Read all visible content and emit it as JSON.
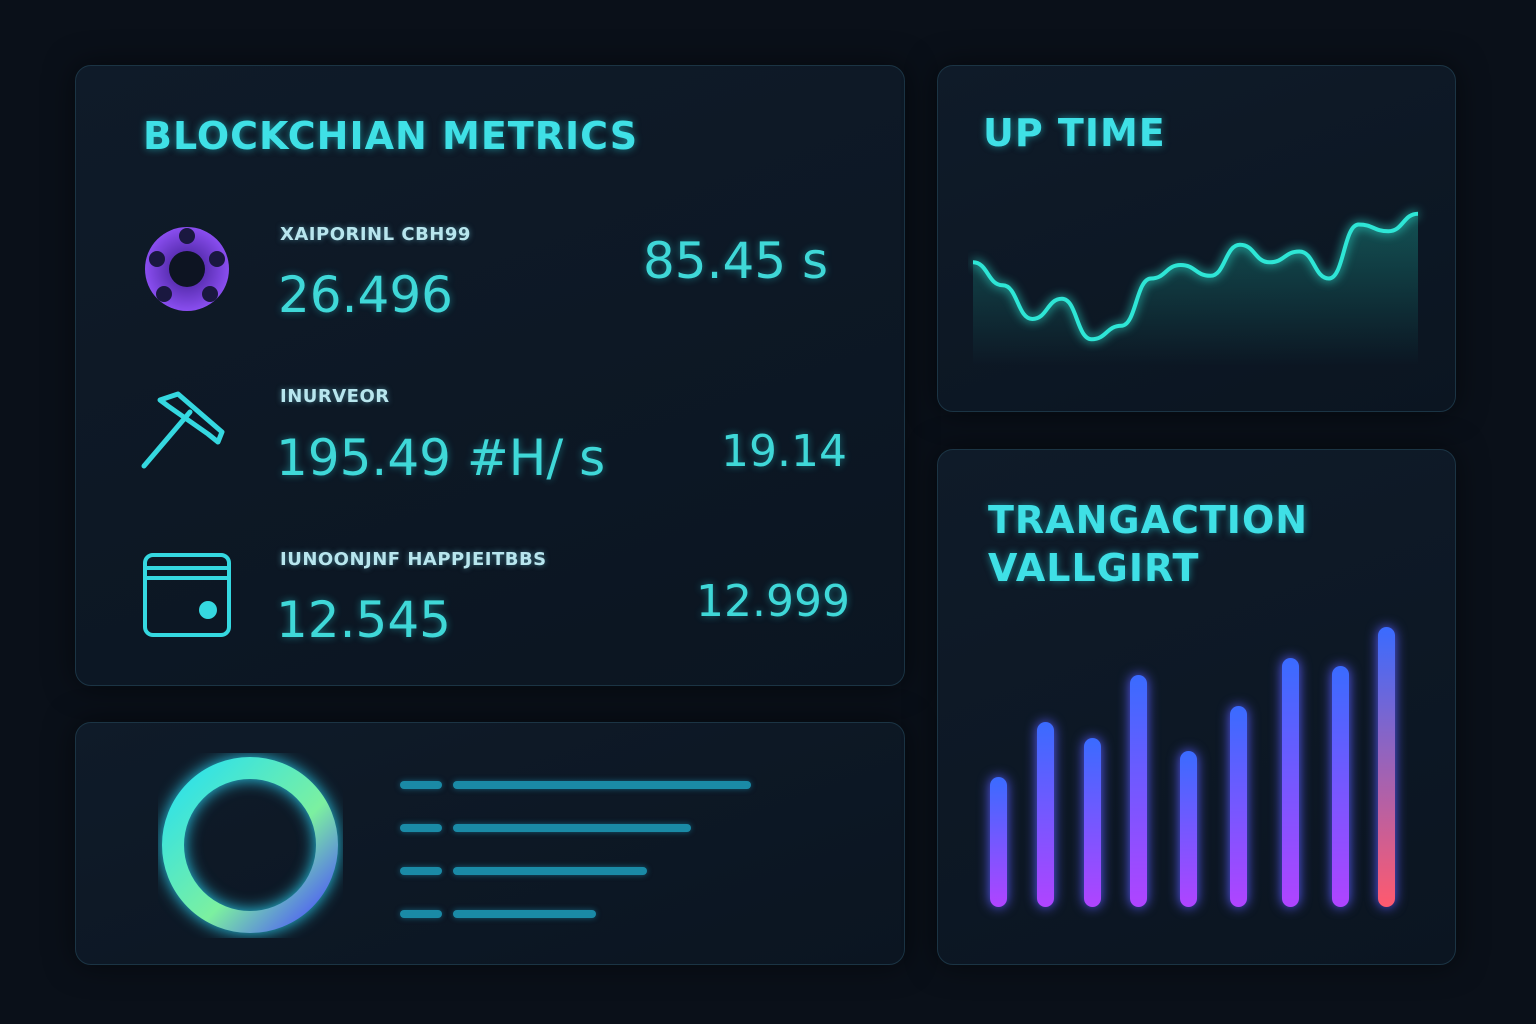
{
  "metrics": {
    "title": "BLOCKCHIAN METRICS",
    "items": [
      {
        "icon": "coin-icon",
        "label": "XAIPORINL CBH99",
        "value": "26.496",
        "side_value": "85.45 s"
      },
      {
        "icon": "pickaxe-icon",
        "label": "INURVEOR",
        "value": "195.49 #H/ s",
        "side_value": "19.14"
      },
      {
        "icon": "wallet-icon",
        "label": "IUNOONJNF HAPPJEITBBS",
        "value": "12.545",
        "side_value": "12.999"
      }
    ]
  },
  "uptime": {
    "title": "UP TIME",
    "line_color": "#2ee6d6",
    "values": [
      62,
      45,
      20,
      35,
      5,
      15,
      50,
      60,
      52,
      75,
      62,
      70,
      50,
      90,
      85,
      98
    ]
  },
  "transactions": {
    "title_line1": "TRANGACTION",
    "title_line2": "VALLGIRT",
    "values": [
      130,
      185,
      169,
      232,
      156,
      201,
      249,
      241,
      280
    ],
    "colors": {
      "top": "#3a6bff",
      "bottom": "#b044ff",
      "last_bottom": "#ff5a6e"
    }
  },
  "summary": {
    "ring_colors": [
      "#27e0f0",
      "#7cf0a0",
      "#4a4cff"
    ],
    "lines": [
      {
        "fill": 1.0
      },
      {
        "fill": 0.8
      },
      {
        "fill": 0.65
      },
      {
        "fill": 0.48
      }
    ]
  }
}
